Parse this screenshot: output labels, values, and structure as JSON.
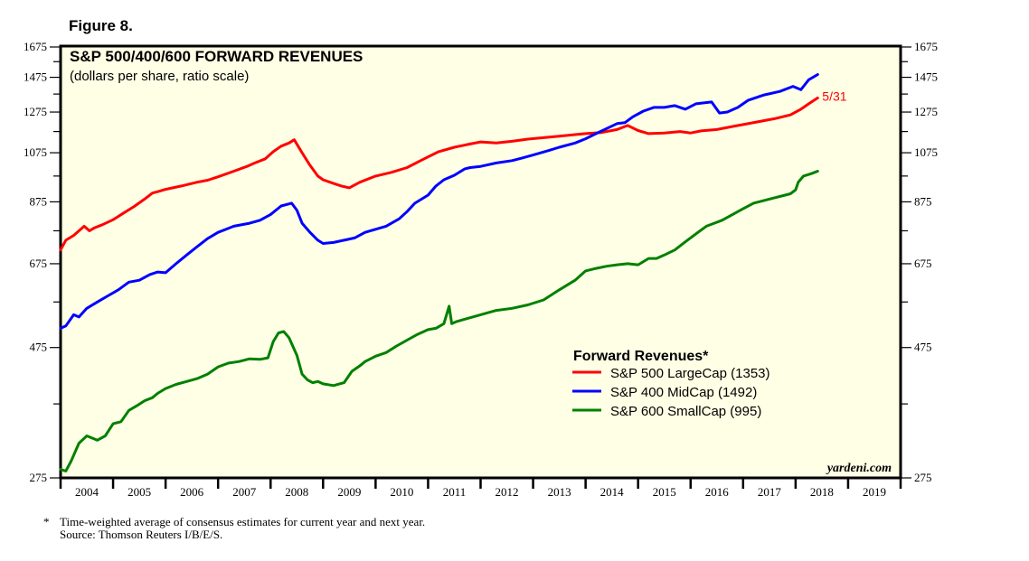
{
  "figure_label": "Figure 8.",
  "chart_data": {
    "type": "line",
    "title": "S&P 500/400/600 FORWARD REVENUES",
    "subtitle": "(dollars per share, ratio scale)",
    "xlabel": "",
    "ylabel": "",
    "y_scale": "log",
    "ylim": [
      275,
      1675
    ],
    "xlim": [
      2004.0,
      2020.0
    ],
    "y_ticks": [
      1675,
      1475,
      1275,
      1075,
      875,
      675,
      475,
      275
    ],
    "x_tick_labels": [
      "2004",
      "2005",
      "2006",
      "2007",
      "2008",
      "2009",
      "2010",
      "2011",
      "2012",
      "2013",
      "2014",
      "2015",
      "2016",
      "2017",
      "2018",
      "2019"
    ],
    "grid": false,
    "legend": {
      "title": "Forward Revenues*",
      "placement": "bottom-right",
      "entries": [
        {
          "label": "S&P 500 LargeCap (1353)",
          "color": "#ff0000"
        },
        {
          "label": "S&P 400 MidCap (1492)",
          "color": "#0000ff"
        },
        {
          "label": "S&P 600 SmallCap (995)",
          "color": "#008000"
        }
      ]
    },
    "end_annotation": {
      "text": "5/31",
      "color": "#ff0000"
    },
    "watermark": "yardeni.com",
    "series": [
      {
        "name": "S&P 500 LargeCap",
        "color": "#ff0000",
        "x": [
          2004.0,
          2004.1,
          2004.25,
          2004.45,
          2004.55,
          2004.65,
          2004.8,
          2005.0,
          2005.2,
          2005.4,
          2005.6,
          2005.75,
          2005.85,
          2006.0,
          2006.3,
          2006.6,
          2006.8,
          2007.0,
          2007.3,
          2007.55,
          2007.7,
          2007.9,
          2008.05,
          2008.2,
          2008.35,
          2008.45,
          2008.6,
          2008.75,
          2008.9,
          2009.0,
          2009.2,
          2009.35,
          2009.5,
          2009.7,
          2010.0,
          2010.3,
          2010.6,
          2010.9,
          2011.2,
          2011.5,
          2011.8,
          2012.0,
          2012.3,
          2012.6,
          2012.9,
          2013.2,
          2013.5,
          2013.8,
          2014.0,
          2014.3,
          2014.6,
          2014.8,
          2015.0,
          2015.2,
          2015.5,
          2015.8,
          2016.0,
          2016.2,
          2016.5,
          2016.8,
          2017.0,
          2017.3,
          2017.6,
          2017.9,
          2018.1,
          2018.25,
          2018.42
        ],
        "values": [
          715,
          745,
          760,
          790,
          775,
          785,
          795,
          812,
          835,
          858,
          885,
          908,
          913,
          922,
          935,
          950,
          958,
          972,
          995,
          1015,
          1030,
          1048,
          1080,
          1105,
          1120,
          1135,
          1075,
          1020,
          975,
          960,
          945,
          935,
          928,
          950,
          975,
          990,
          1010,
          1045,
          1080,
          1100,
          1115,
          1125,
          1120,
          1128,
          1138,
          1145,
          1152,
          1160,
          1165,
          1170,
          1185,
          1205,
          1180,
          1165,
          1168,
          1175,
          1168,
          1178,
          1185,
          1200,
          1210,
          1225,
          1240,
          1260,
          1290,
          1320,
          1353
        ]
      },
      {
        "name": "S&P 400 MidCap",
        "color": "#0000ff",
        "x": [
          2004.0,
          2004.1,
          2004.25,
          2004.35,
          2004.5,
          2004.7,
          2004.9,
          2005.1,
          2005.3,
          2005.5,
          2005.7,
          2005.85,
          2006.0,
          2006.2,
          2006.4,
          2006.6,
          2006.8,
          2007.0,
          2007.3,
          2007.6,
          2007.8,
          2008.0,
          2008.2,
          2008.4,
          2008.5,
          2008.6,
          2008.75,
          2008.9,
          2009.0,
          2009.2,
          2009.4,
          2009.6,
          2009.8,
          2010.0,
          2010.2,
          2010.45,
          2010.6,
          2010.75,
          2011.0,
          2011.15,
          2011.3,
          2011.5,
          2011.7,
          2011.8,
          2012.0,
          2012.3,
          2012.6,
          2012.8,
          2013.0,
          2013.3,
          2013.5,
          2013.8,
          2014.0,
          2014.2,
          2014.4,
          2014.6,
          2014.75,
          2014.9,
          2015.1,
          2015.3,
          2015.5,
          2015.7,
          2015.9,
          2016.1,
          2016.4,
          2016.55,
          2016.7,
          2016.9,
          2017.1,
          2017.4,
          2017.7,
          2017.95,
          2018.1,
          2018.25,
          2018.42
        ],
        "values": [
          515,
          520,
          545,
          540,
          560,
          575,
          590,
          605,
          625,
          630,
          645,
          652,
          650,
          675,
          700,
          725,
          750,
          770,
          790,
          800,
          810,
          830,
          860,
          870,
          845,
          800,
          770,
          745,
          735,
          738,
          745,
          752,
          770,
          780,
          790,
          815,
          840,
          870,
          900,
          935,
          960,
          978,
          1005,
          1010,
          1015,
          1030,
          1040,
          1052,
          1065,
          1085,
          1100,
          1120,
          1140,
          1165,
          1190,
          1215,
          1220,
          1250,
          1280,
          1300,
          1300,
          1310,
          1290,
          1320,
          1330,
          1270,
          1275,
          1300,
          1340,
          1370,
          1390,
          1420,
          1400,
          1460,
          1492
        ]
      },
      {
        "name": "S&P 600 SmallCap",
        "color": "#008000",
        "x": [
          2004.0,
          2004.1,
          2004.2,
          2004.35,
          2004.5,
          2004.7,
          2004.85,
          2005.0,
          2005.15,
          2005.3,
          2005.45,
          2005.6,
          2005.75,
          2005.85,
          2006.0,
          2006.2,
          2006.4,
          2006.6,
          2006.8,
          2007.0,
          2007.2,
          2007.4,
          2007.6,
          2007.8,
          2007.95,
          2008.05,
          2008.15,
          2008.25,
          2008.35,
          2008.5,
          2008.6,
          2008.7,
          2008.8,
          2008.9,
          2009.0,
          2009.2,
          2009.4,
          2009.55,
          2009.7,
          2009.8,
          2010.0,
          2010.2,
          2010.4,
          2010.6,
          2010.8,
          2011.0,
          2011.15,
          2011.3,
          2011.4,
          2011.45,
          2011.55,
          2011.7,
          2012.0,
          2012.3,
          2012.6,
          2012.9,
          2013.2,
          2013.5,
          2013.8,
          2014.0,
          2014.2,
          2014.4,
          2014.6,
          2014.8,
          2015.0,
          2015.2,
          2015.35,
          2015.5,
          2015.7,
          2015.9,
          2016.1,
          2016.3,
          2016.45,
          2016.6,
          2016.8,
          2017.0,
          2017.2,
          2017.4,
          2017.6,
          2017.8,
          2017.9,
          2018.0,
          2018.05,
          2018.15,
          2018.3,
          2018.42
        ],
        "values": [
          285,
          283,
          295,
          318,
          328,
          322,
          328,
          345,
          348,
          365,
          372,
          380,
          385,
          392,
          400,
          407,
          412,
          417,
          425,
          438,
          445,
          448,
          453,
          452,
          455,
          487,
          505,
          508,
          495,
          460,
          425,
          415,
          410,
          412,
          408,
          405,
          410,
          430,
          440,
          448,
          458,
          465,
          478,
          490,
          502,
          512,
          515,
          525,
          565,
          525,
          530,
          535,
          545,
          555,
          560,
          568,
          580,
          605,
          630,
          655,
          662,
          668,
          672,
          675,
          672,
          690,
          690,
          700,
          715,
          740,
          765,
          790,
          800,
          810,
          830,
          850,
          870,
          880,
          890,
          900,
          905,
          920,
          950,
          975,
          985,
          995
        ]
      }
    ]
  },
  "footnotes": {
    "marker": "*",
    "line1": "Time-weighted average of consensus estimates for current year and next year.",
    "line2": "Source: Thomson Reuters I/B/E/S."
  }
}
